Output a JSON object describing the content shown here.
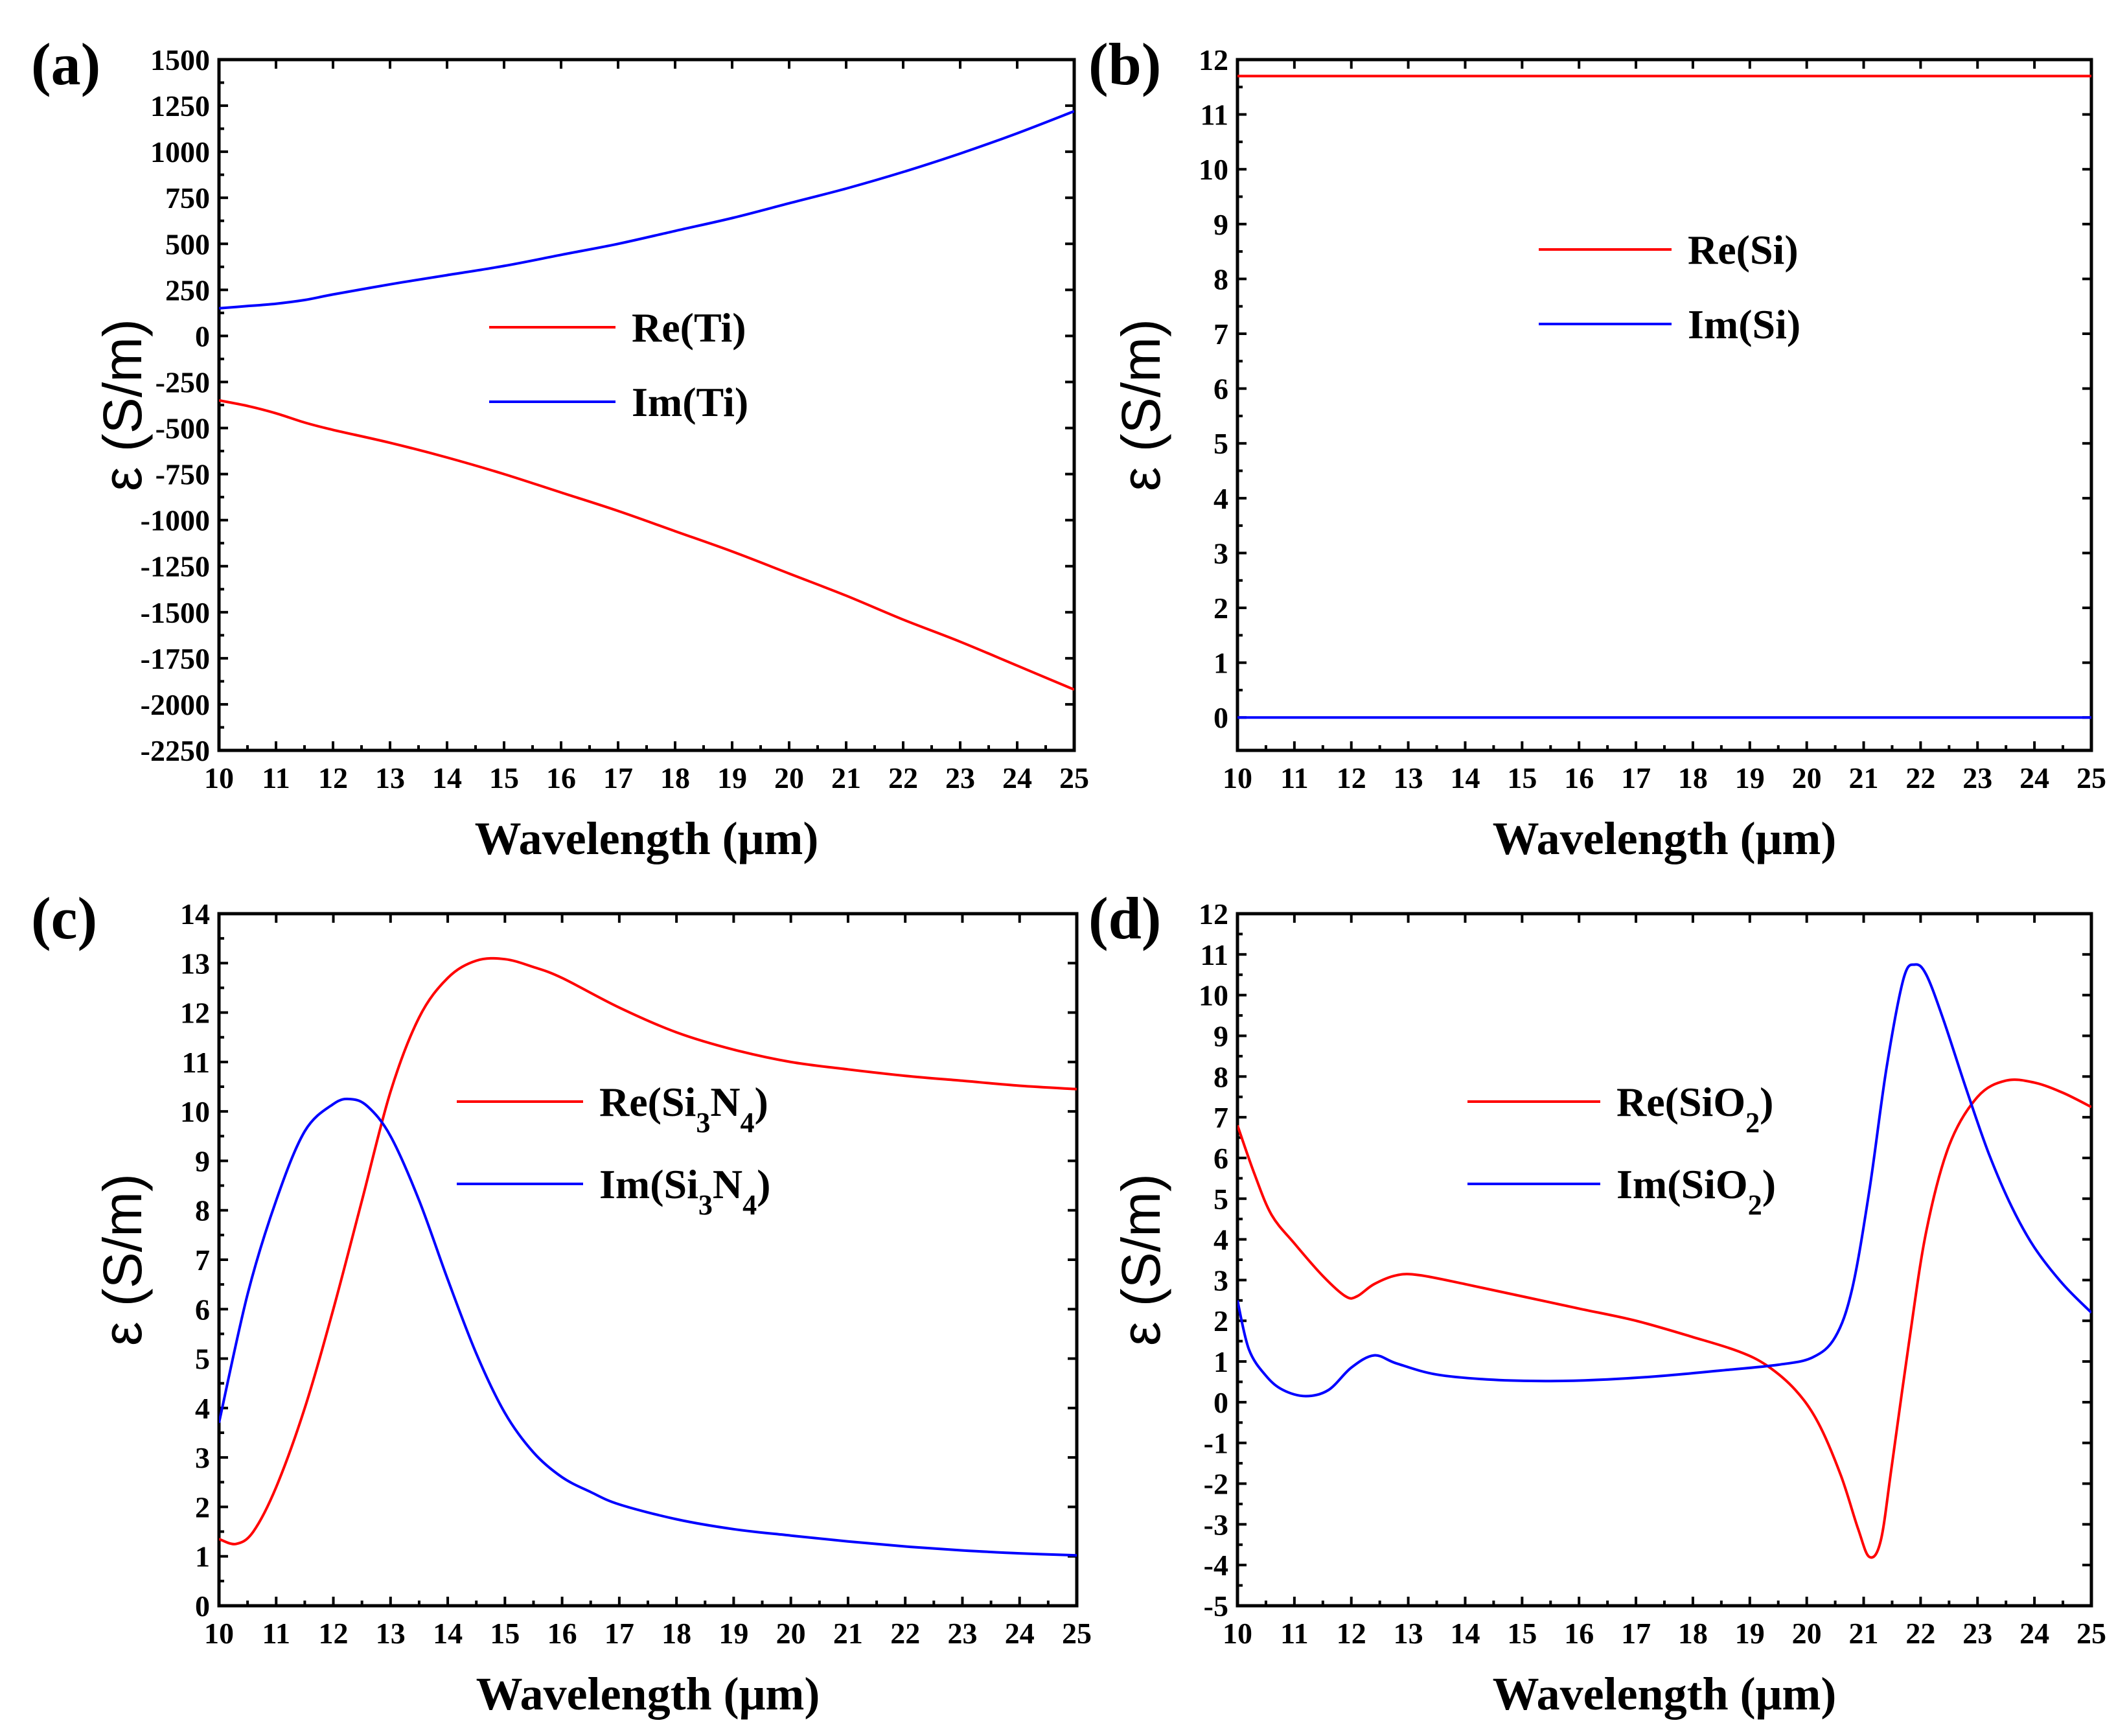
{
  "chart_data": [
    {
      "id": "a",
      "type": "line",
      "panel_label": "(a)",
      "title": "",
      "xlabel": "Wavelength (μm)",
      "ylabel": "ε (S/m)",
      "xlim": [
        10,
        25
      ],
      "ylim": [
        -2250,
        1500
      ],
      "xticks": [
        10,
        11,
        12,
        13,
        14,
        15,
        16,
        17,
        18,
        19,
        20,
        21,
        22,
        23,
        24,
        25
      ],
      "yticks": [
        -2250,
        -2000,
        -1750,
        -1500,
        -1250,
        -1000,
        -750,
        -500,
        -250,
        0,
        250,
        500,
        750,
        1000,
        1250,
        1500
      ],
      "legend_position": "center",
      "series": [
        {
          "name": "Re(Ti)",
          "legend": [
            {
              "t": "Re(Ti)"
            }
          ],
          "color": "#ff0000",
          "x": [
            10,
            10.5,
            11,
            11.5,
            12,
            13,
            14,
            15,
            16,
            17,
            18,
            19,
            20,
            21,
            22,
            23,
            24,
            25
          ],
          "y": [
            -350,
            -380,
            -420,
            -470,
            -510,
            -580,
            -660,
            -750,
            -850,
            -950,
            -1060,
            -1170,
            -1290,
            -1410,
            -1540,
            -1660,
            -1790,
            -1920
          ]
        },
        {
          "name": "Im(Ti)",
          "legend": [
            {
              "t": "Im(Ti)"
            }
          ],
          "color": "#0000ff",
          "x": [
            10,
            10.5,
            11,
            11.5,
            12,
            13,
            14,
            15,
            16,
            17,
            18,
            19,
            20,
            21,
            22,
            23,
            24,
            25
          ],
          "y": [
            150,
            162,
            175,
            195,
            225,
            280,
            330,
            380,
            440,
            500,
            570,
            640,
            720,
            800,
            890,
            990,
            1100,
            1220
          ]
        }
      ]
    },
    {
      "id": "b",
      "type": "line",
      "panel_label": "(b)",
      "title": "",
      "xlabel": "Wavelength (μm)",
      "ylabel": "ε (S/m)",
      "xlim": [
        10,
        25
      ],
      "ylim": [
        -0.6,
        12
      ],
      "xticks": [
        10,
        11,
        12,
        13,
        14,
        15,
        16,
        17,
        18,
        19,
        20,
        21,
        22,
        23,
        24,
        25
      ],
      "yticks": [
        0,
        1,
        2,
        3,
        4,
        5,
        6,
        7,
        8,
        9,
        10,
        11,
        12
      ],
      "legend_position": "upper center",
      "series": [
        {
          "name": "Re(Si)",
          "legend": [
            {
              "t": "Re(Si)"
            }
          ],
          "color": "#ff0000",
          "x": [
            10,
            25
          ],
          "y": [
            11.7,
            11.7
          ]
        },
        {
          "name": "Im(Si)",
          "legend": [
            {
              "t": "Im(Si)"
            }
          ],
          "color": "#0000ff",
          "x": [
            10,
            25
          ],
          "y": [
            0,
            0
          ]
        }
      ]
    },
    {
      "id": "c",
      "type": "line",
      "panel_label": "(c)",
      "title": "",
      "xlabel": "Wavelength (μm)",
      "ylabel": "ε (S/m)",
      "xlim": [
        10,
        25
      ],
      "ylim": [
        0,
        14
      ],
      "xticks": [
        10,
        11,
        12,
        13,
        14,
        15,
        16,
        17,
        18,
        19,
        20,
        21,
        22,
        23,
        24,
        25
      ],
      "yticks": [
        0,
        1,
        2,
        3,
        4,
        5,
        6,
        7,
        8,
        9,
        10,
        11,
        12,
        13,
        14
      ],
      "legend_position": "center-right",
      "series": [
        {
          "name": "Re(Si3N4)",
          "legend": [
            {
              "t": "Re(Si"
            },
            {
              "t": "3",
              "sub": true
            },
            {
              "t": "N"
            },
            {
              "t": "4",
              "sub": true
            },
            {
              "t": ")"
            }
          ],
          "color": "#ff0000",
          "x": [
            10,
            10.3,
            10.6,
            11,
            11.5,
            12,
            12.5,
            13,
            13.5,
            14,
            14.5,
            15,
            15.5,
            16,
            17,
            18,
            19,
            20,
            21,
            22,
            23,
            24,
            25
          ],
          "y": [
            1.35,
            1.25,
            1.5,
            2.4,
            4.0,
            6.0,
            8.2,
            10.4,
            11.9,
            12.7,
            13.05,
            13.08,
            12.92,
            12.7,
            12.1,
            11.6,
            11.25,
            11.0,
            10.85,
            10.72,
            10.62,
            10.52,
            10.45
          ]
        },
        {
          "name": "Im(Si3N4)",
          "legend": [
            {
              "t": "Im(Si"
            },
            {
              "t": "3",
              "sub": true
            },
            {
              "t": "N"
            },
            {
              "t": "4",
              "sub": true
            },
            {
              "t": ")"
            }
          ],
          "color": "#0000ff",
          "x": [
            10,
            10.5,
            11,
            11.5,
            12,
            12.3,
            12.6,
            13,
            13.5,
            14,
            14.5,
            15,
            15.5,
            16,
            16.5,
            17,
            18,
            19,
            20,
            21,
            22,
            23,
            24,
            25
          ],
          "y": [
            3.7,
            6.3,
            8.2,
            9.6,
            10.15,
            10.25,
            10.1,
            9.5,
            8.2,
            6.6,
            5.1,
            3.9,
            3.1,
            2.6,
            2.3,
            2.05,
            1.75,
            1.55,
            1.42,
            1.3,
            1.2,
            1.12,
            1.06,
            1.02
          ]
        }
      ]
    },
    {
      "id": "d",
      "type": "line",
      "panel_label": "(d)",
      "title": "",
      "xlabel": "Wavelength (μm)",
      "ylabel": "ε (S/m)",
      "xlim": [
        10,
        25
      ],
      "ylim": [
        -5,
        12
      ],
      "xticks": [
        10,
        11,
        12,
        13,
        14,
        15,
        16,
        17,
        18,
        19,
        20,
        21,
        22,
        23,
        24,
        25
      ],
      "yticks": [
        -5,
        -4,
        -3,
        -2,
        -1,
        0,
        1,
        2,
        3,
        4,
        5,
        6,
        7,
        8,
        9,
        10,
        11,
        12
      ],
      "legend_position": "upper center",
      "series": [
        {
          "name": "Re(SiO2)",
          "legend": [
            {
              "t": "Re(SiO"
            },
            {
              "t": "2",
              "sub": true
            },
            {
              "t": ")"
            }
          ],
          "color": "#ff0000",
          "x": [
            10,
            10.3,
            10.6,
            11,
            11.5,
            11.9,
            12.1,
            12.4,
            12.8,
            13.2,
            14,
            15,
            16,
            17,
            18,
            18.8,
            19.3,
            19.8,
            20.2,
            20.6,
            20.9,
            21.1,
            21.3,
            21.5,
            21.8,
            22.1,
            22.5,
            23,
            23.5,
            24,
            24.5,
            25
          ],
          "y": [
            6.8,
            5.6,
            4.6,
            3.9,
            3.1,
            2.6,
            2.6,
            2.9,
            3.12,
            3.12,
            2.9,
            2.6,
            2.3,
            2.0,
            1.6,
            1.25,
            0.9,
            0.3,
            -0.5,
            -1.8,
            -3.1,
            -3.8,
            -3.4,
            -1.5,
            1.5,
            4.2,
            6.3,
            7.5,
            7.9,
            7.85,
            7.6,
            7.25
          ]
        },
        {
          "name": "Im(SiO2)",
          "legend": [
            {
              "t": "Im(SiO"
            },
            {
              "t": "2",
              "sub": true
            },
            {
              "t": ")"
            }
          ],
          "color": "#0000ff",
          "x": [
            10,
            10.2,
            10.5,
            10.8,
            11.2,
            11.6,
            12,
            12.4,
            12.8,
            13.5,
            14.5,
            15.5,
            16.5,
            17.5,
            18.5,
            19.5,
            20.1,
            20.5,
            20.8,
            21.1,
            21.4,
            21.7,
            21.9,
            22.1,
            22.4,
            22.8,
            23.2,
            23.6,
            24,
            24.5,
            25
          ],
          "y": [
            2.5,
            1.3,
            0.65,
            0.3,
            0.15,
            0.3,
            0.85,
            1.15,
            0.95,
            0.68,
            0.55,
            0.52,
            0.56,
            0.65,
            0.78,
            0.92,
            1.1,
            1.6,
            2.8,
            5.2,
            8.2,
            10.4,
            10.75,
            10.5,
            9.4,
            7.7,
            6.1,
            4.8,
            3.8,
            2.9,
            2.2
          ]
        }
      ]
    }
  ]
}
